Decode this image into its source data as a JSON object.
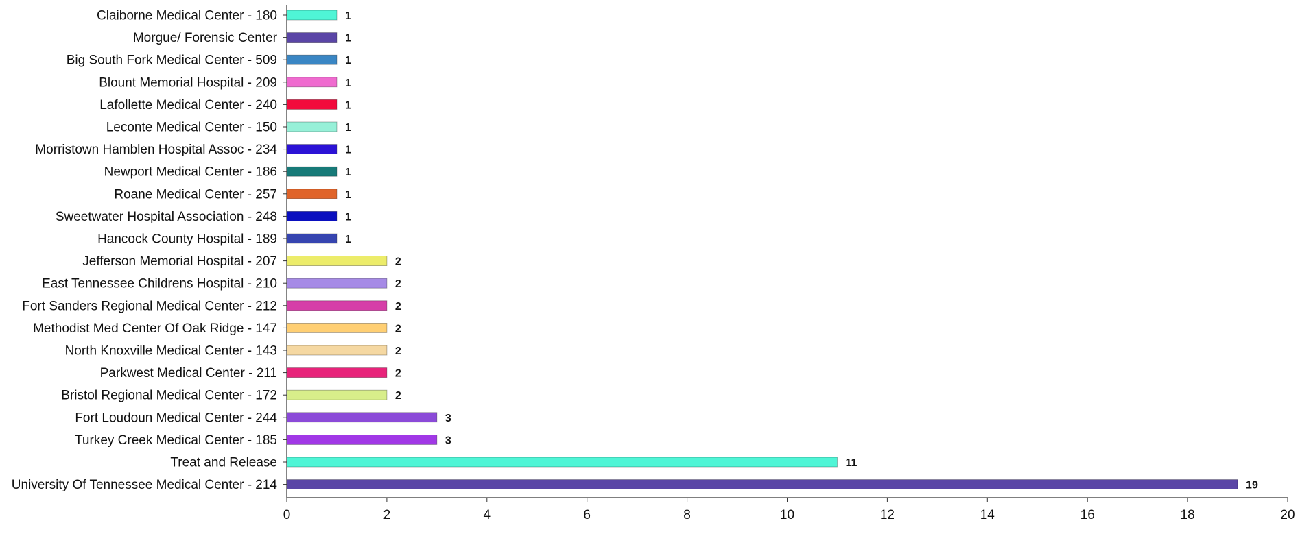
{
  "chart_data": {
    "type": "bar",
    "orientation": "horizontal",
    "title": "",
    "xlabel": "",
    "ylabel": "",
    "xlim": [
      0,
      20
    ],
    "x_ticks": [
      "0",
      "2",
      "4",
      "6",
      "8",
      "10",
      "12",
      "14",
      "16",
      "18",
      "20"
    ],
    "grid": false,
    "legend": "none",
    "categories": [
      "Claiborne Medical Center - 180",
      "Morgue/ Forensic Center",
      "Big South Fork Medical Center - 509",
      "Blount Memorial Hospital - 209",
      "Lafollette Medical Center - 240",
      "Leconte Medical Center - 150",
      "Morristown Hamblen Hospital Assoc - 234",
      "Newport Medical Center - 186",
      "Roane Medical Center - 257",
      "Sweetwater Hospital Association - 248",
      "Hancock County Hospital - 189",
      "Jefferson Memorial Hospital - 207",
      "East Tennessee Childrens Hospital - 210",
      "Fort Sanders Regional Medical Center - 212",
      "Methodist Med Center Of Oak Ridge - 147",
      "North Knoxville Medical Center - 143",
      "Parkwest Medical Center - 211",
      "Bristol Regional Medical Center - 172",
      "Fort Loudoun Medical Center - 244",
      "Turkey Creek Medical Center - 185",
      "Treat and Release",
      "University Of Tennessee Medical Center - 214"
    ],
    "values": [
      1,
      1,
      1,
      1,
      1,
      1,
      1,
      1,
      1,
      1,
      1,
      2,
      2,
      2,
      2,
      2,
      2,
      2,
      3,
      3,
      11,
      19
    ],
    "value_labels": [
      "1",
      "1",
      "1",
      "1",
      "1",
      "1",
      "1",
      "1",
      "1",
      "1",
      "1",
      "2",
      "2",
      "2",
      "2",
      "2",
      "2",
      "2",
      "3",
      "3",
      "11",
      "19"
    ],
    "colors": [
      "#4ff5d6",
      "#5a45a6",
      "#3a86c4",
      "#ef6bcf",
      "#f20a3c",
      "#97f0d8",
      "#2b12d6",
      "#177a78",
      "#e0642a",
      "#0a0fbf",
      "#3645b0",
      "#ecec6a",
      "#a68ae6",
      "#d63ea8",
      "#ffcf73",
      "#f5d8a2",
      "#e8237a",
      "#d8ee8a",
      "#8b4ad8",
      "#a138e6",
      "#4ff5d6",
      "#5a45a6"
    ]
  }
}
